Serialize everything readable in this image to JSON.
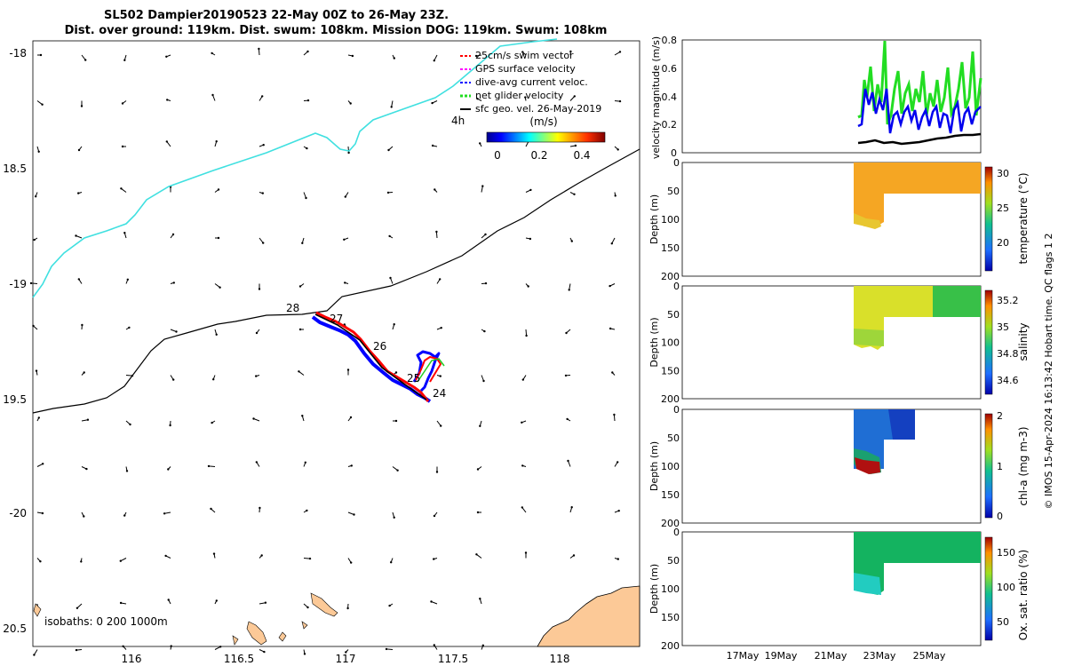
{
  "title": {
    "line1": "SL502 Dampier20190523 22-May 00Z to 26-May 23Z.",
    "line2": "Dist. over ground: 119km. Dist. swum: 108km. Mission DOG: 119km. Swum: 108km"
  },
  "map": {
    "lon_ticks": [
      "116",
      "116.5",
      "117",
      "117.5",
      "118"
    ],
    "lat_ticks": [
      "-18",
      "18.5",
      "-19",
      "19.5",
      "-20",
      "20.5"
    ],
    "legend": [
      {
        "label": "25cm/s swim vector",
        "color": "#ff0000"
      },
      {
        "label": "GPS surface velocity",
        "color": "#ff00ff"
      },
      {
        "label": "dive-avg current veloc.",
        "color": "#0000ff"
      },
      {
        "label": "net glider velocity",
        "color": "#00dd00"
      },
      {
        "label": "sfc geo. vel. 26-May-2019",
        "color": "#000000"
      }
    ],
    "interval_label": "4h",
    "colorbar": {
      "unit": "(m/s)",
      "ticks": [
        "0",
        "0.2",
        "0.4"
      ]
    },
    "track_day_labels": [
      "28",
      "27",
      "26",
      "25",
      "24"
    ],
    "isobaths_label": "isobaths: 0   200  1000m"
  },
  "chart_data": [
    {
      "type": "line",
      "title": "",
      "ylabel": "velocity magnitude (m/s)",
      "ylim": [
        0,
        0.8
      ],
      "yticks": [
        "0",
        "0.2",
        "0.4",
        "0.6",
        "0.8"
      ],
      "series": [
        {
          "name": "net glider velocity",
          "color": "#22dd22"
        },
        {
          "name": "dive-avg current veloc.",
          "color": "#0000ee"
        },
        {
          "name": "sfc geo. vel.",
          "color": "#000000"
        }
      ]
    },
    {
      "type": "heatmap",
      "ylabel": "Depth (m)",
      "yticks": [
        "0",
        "50",
        "100",
        "150",
        "200"
      ],
      "colorbar_label": "temperature (°C)",
      "colorbar_ticks": [
        "30",
        "25",
        "20"
      ]
    },
    {
      "type": "heatmap",
      "ylabel": "Depth (m)",
      "yticks": [
        "0",
        "50",
        "100",
        "150",
        "200"
      ],
      "colorbar_label": "salinity",
      "colorbar_ticks": [
        "35.2",
        "35",
        "34.8",
        "34.6"
      ]
    },
    {
      "type": "heatmap",
      "ylabel": "Depth (m)",
      "yticks": [
        "0",
        "50",
        "100",
        "150",
        "200"
      ],
      "colorbar_label": "chl-a (mg m-3)",
      "colorbar_ticks": [
        "2",
        "1",
        "0"
      ]
    },
    {
      "type": "heatmap",
      "ylabel": "Depth (m)",
      "yticks": [
        "0",
        "50",
        "100",
        "150",
        "200"
      ],
      "colorbar_label": "Ox. sat. ratio (%)",
      "colorbar_ticks": [
        "150",
        "100",
        "50"
      ],
      "xticks": [
        "17May",
        "19May",
        "21May",
        "23May",
        "25May"
      ]
    }
  ],
  "side_note": "© IMOS 15-Apr-2024 16:13:42 Hobart time. QC flags 1  2",
  "colors": {
    "coast_line": "#40e0e0",
    "land": "#fcc997",
    "temp_fill": "#f5a623",
    "salinity_fill": "#d9e02a",
    "chl_fill": "#1f6ed4",
    "oxy_fill": "#14b360"
  }
}
